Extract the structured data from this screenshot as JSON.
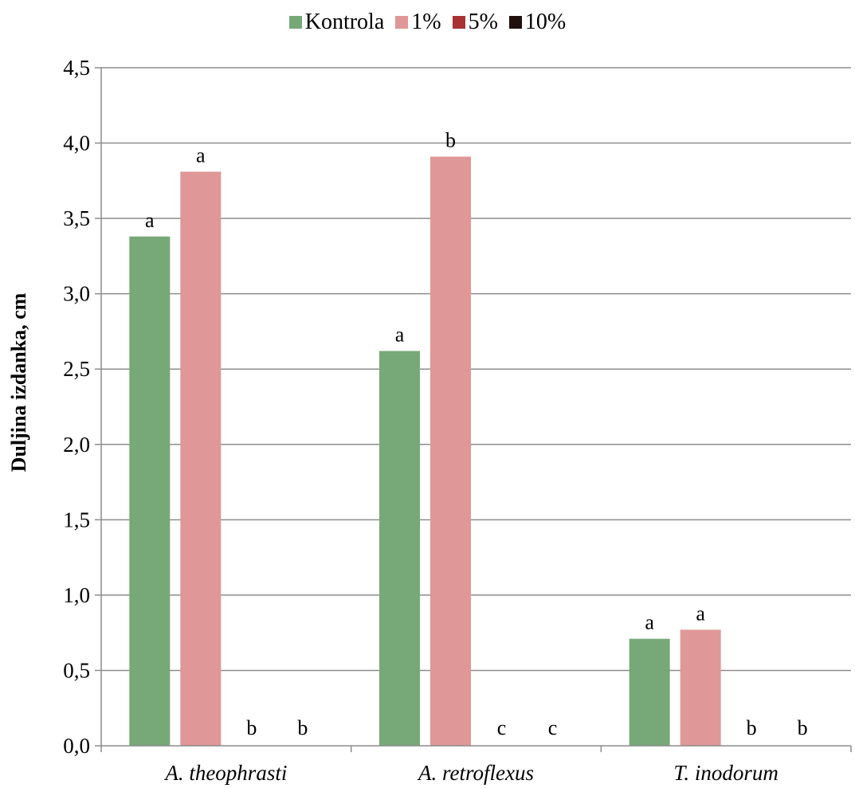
{
  "chart_data": {
    "type": "bar",
    "ylabel": "Duljina izdanka, cm",
    "xlabel": "",
    "ylim": [
      0,
      4.5
    ],
    "yticks": [
      "0,0",
      "0,5",
      "1,0",
      "1,5",
      "2,0",
      "2,5",
      "3,0",
      "3,5",
      "4,0",
      "4,5"
    ],
    "categories": [
      "A. theophrasti",
      "A. retroflexus",
      "T. inodorum"
    ],
    "series": [
      {
        "name": "Kontrola",
        "color": "#77a877",
        "values": [
          3.38,
          2.62,
          0.71
        ],
        "letters": [
          "a",
          "a",
          "a"
        ]
      },
      {
        "name": "1%",
        "color": "#df9797",
        "values": [
          3.81,
          3.91,
          0.77
        ],
        "letters": [
          "a",
          "b",
          "a"
        ]
      },
      {
        "name": "5%",
        "color": "#a83232",
        "values": [
          0,
          0,
          0
        ],
        "letters": [
          "b",
          "c",
          "b"
        ]
      },
      {
        "name": "10%",
        "color": "#1f0f0f",
        "values": [
          0,
          0,
          0
        ],
        "letters": [
          "b",
          "c",
          "b"
        ]
      }
    ],
    "grid": true,
    "legend_position": "top-center"
  }
}
